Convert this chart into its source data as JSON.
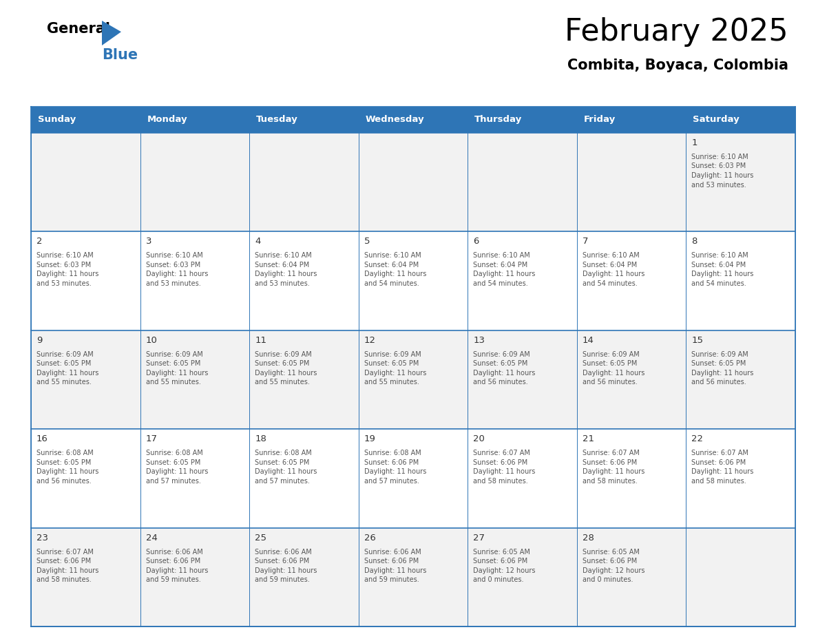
{
  "title": "February 2025",
  "subtitle": "Combita, Boyaca, Colombia",
  "header_bg": "#2E75B6",
  "header_text_color": "#FFFFFF",
  "cell_bg_odd": "#F2F2F2",
  "cell_bg_even": "#FFFFFF",
  "day_number_color": "#333333",
  "cell_text_color": "#555555",
  "grid_line_color": "#2E75B6",
  "days_of_week": [
    "Sunday",
    "Monday",
    "Tuesday",
    "Wednesday",
    "Thursday",
    "Friday",
    "Saturday"
  ],
  "calendar": [
    [
      null,
      null,
      null,
      null,
      null,
      null,
      1
    ],
    [
      2,
      3,
      4,
      5,
      6,
      7,
      8
    ],
    [
      9,
      10,
      11,
      12,
      13,
      14,
      15
    ],
    [
      16,
      17,
      18,
      19,
      20,
      21,
      22
    ],
    [
      23,
      24,
      25,
      26,
      27,
      28,
      null
    ]
  ],
  "cell_data": {
    "1": {
      "sunrise": "6:10 AM",
      "sunset": "6:03 PM",
      "dl_h": "11",
      "dl_m": "53"
    },
    "2": {
      "sunrise": "6:10 AM",
      "sunset": "6:03 PM",
      "dl_h": "11",
      "dl_m": "53"
    },
    "3": {
      "sunrise": "6:10 AM",
      "sunset": "6:03 PM",
      "dl_h": "11",
      "dl_m": "53"
    },
    "4": {
      "sunrise": "6:10 AM",
      "sunset": "6:04 PM",
      "dl_h": "11",
      "dl_m": "53"
    },
    "5": {
      "sunrise": "6:10 AM",
      "sunset": "6:04 PM",
      "dl_h": "11",
      "dl_m": "54"
    },
    "6": {
      "sunrise": "6:10 AM",
      "sunset": "6:04 PM",
      "dl_h": "11",
      "dl_m": "54"
    },
    "7": {
      "sunrise": "6:10 AM",
      "sunset": "6:04 PM",
      "dl_h": "11",
      "dl_m": "54"
    },
    "8": {
      "sunrise": "6:10 AM",
      "sunset": "6:04 PM",
      "dl_h": "11",
      "dl_m": "54"
    },
    "9": {
      "sunrise": "6:09 AM",
      "sunset": "6:05 PM",
      "dl_h": "11",
      "dl_m": "55"
    },
    "10": {
      "sunrise": "6:09 AM",
      "sunset": "6:05 PM",
      "dl_h": "11",
      "dl_m": "55"
    },
    "11": {
      "sunrise": "6:09 AM",
      "sunset": "6:05 PM",
      "dl_h": "11",
      "dl_m": "55"
    },
    "12": {
      "sunrise": "6:09 AM",
      "sunset": "6:05 PM",
      "dl_h": "11",
      "dl_m": "55"
    },
    "13": {
      "sunrise": "6:09 AM",
      "sunset": "6:05 PM",
      "dl_h": "11",
      "dl_m": "56"
    },
    "14": {
      "sunrise": "6:09 AM",
      "sunset": "6:05 PM",
      "dl_h": "11",
      "dl_m": "56"
    },
    "15": {
      "sunrise": "6:09 AM",
      "sunset": "6:05 PM",
      "dl_h": "11",
      "dl_m": "56"
    },
    "16": {
      "sunrise": "6:08 AM",
      "sunset": "6:05 PM",
      "dl_h": "11",
      "dl_m": "56"
    },
    "17": {
      "sunrise": "6:08 AM",
      "sunset": "6:05 PM",
      "dl_h": "11",
      "dl_m": "57"
    },
    "18": {
      "sunrise": "6:08 AM",
      "sunset": "6:05 PM",
      "dl_h": "11",
      "dl_m": "57"
    },
    "19": {
      "sunrise": "6:08 AM",
      "sunset": "6:06 PM",
      "dl_h": "11",
      "dl_m": "57"
    },
    "20": {
      "sunrise": "6:07 AM",
      "sunset": "6:06 PM",
      "dl_h": "11",
      "dl_m": "58"
    },
    "21": {
      "sunrise": "6:07 AM",
      "sunset": "6:06 PM",
      "dl_h": "11",
      "dl_m": "58"
    },
    "22": {
      "sunrise": "6:07 AM",
      "sunset": "6:06 PM",
      "dl_h": "11",
      "dl_m": "58"
    },
    "23": {
      "sunrise": "6:07 AM",
      "sunset": "6:06 PM",
      "dl_h": "11",
      "dl_m": "58"
    },
    "24": {
      "sunrise": "6:06 AM",
      "sunset": "6:06 PM",
      "dl_h": "11",
      "dl_m": "59"
    },
    "25": {
      "sunrise": "6:06 AM",
      "sunset": "6:06 PM",
      "dl_h": "11",
      "dl_m": "59"
    },
    "26": {
      "sunrise": "6:06 AM",
      "sunset": "6:06 PM",
      "dl_h": "11",
      "dl_m": "59"
    },
    "27": {
      "sunrise": "6:05 AM",
      "sunset": "6:06 PM",
      "dl_h": "12",
      "dl_m": "0"
    },
    "28": {
      "sunrise": "6:05 AM",
      "sunset": "6:06 PM",
      "dl_h": "12",
      "dl_m": "0"
    }
  }
}
